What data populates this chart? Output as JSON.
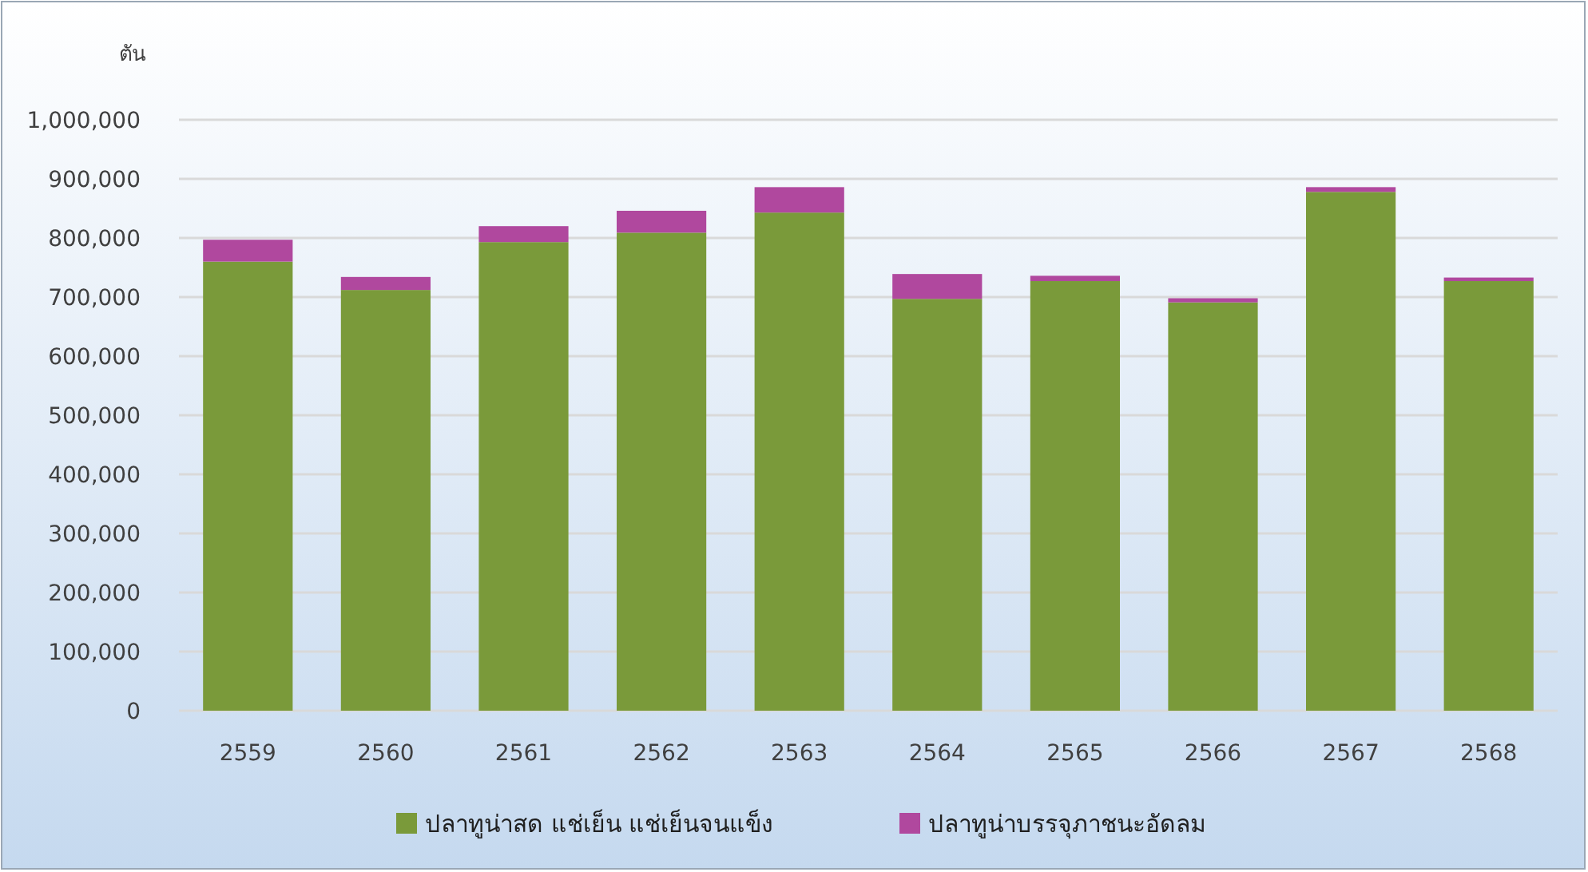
{
  "chart_data": {
    "type": "bar",
    "stacked": true,
    "ylabel": "ตัน",
    "categories": [
      "2559",
      "2560",
      "2561",
      "2562",
      "2563",
      "2564",
      "2565",
      "2566",
      "2567",
      "2568"
    ],
    "series": [
      {
        "name": "ปลาทูน่าสด แช่เย็น แช่เย็นจนแข็ง",
        "color": "#7a9a3a",
        "values": [
          760000,
          712000,
          793000,
          809000,
          843000,
          697000,
          727000,
          691000,
          878000,
          727000
        ]
      },
      {
        "name": "ปลาทูน่าบรรจุภาชนะอัดลม",
        "color": "#b0489e",
        "values": [
          37000,
          22000,
          27000,
          37000,
          43000,
          42000,
          9000,
          7000,
          8000,
          6000
        ]
      }
    ],
    "ylim": [
      0,
      1000000
    ],
    "yticks": [
      0,
      {
        "value": 100000,
        "label": "100,000"
      },
      {
        "value": 200000,
        "label": "200,000"
      },
      {
        "value": 300000,
        "label": "300,000"
      },
      {
        "value": 400000,
        "label": "400,000"
      },
      {
        "value": 500000,
        "label": "500,000"
      },
      {
        "value": 600000,
        "label": "600,000"
      },
      {
        "value": 700000,
        "label": "700,000"
      },
      {
        "value": 800000,
        "label": "800,000"
      },
      {
        "value": 900000,
        "label": "900,000"
      },
      {
        "value": 1000000,
        "label": "1,000,000"
      }
    ],
    "grid": "y",
    "legend": "bottom"
  }
}
